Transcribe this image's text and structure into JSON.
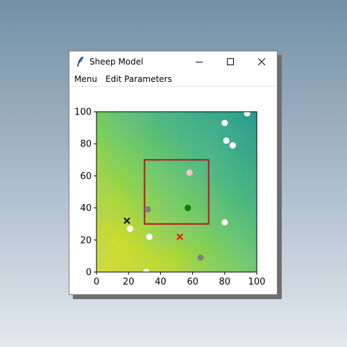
{
  "window": {
    "title": "Sheep Model",
    "icon": "feather-icon",
    "controls": [
      "minimize-icon",
      "maximize-icon",
      "close-icon"
    ]
  },
  "menubar": {
    "items": [
      "Menu",
      "Edit Parameters"
    ]
  },
  "chart_data": {
    "type": "scatter",
    "xlim": [
      0,
      100
    ],
    "ylim": [
      0,
      100
    ],
    "x_ticks": [
      "0",
      "20",
      "40",
      "60",
      "80",
      "100"
    ],
    "y_ticks": [
      "0",
      "20",
      "40",
      "60",
      "80",
      "100"
    ],
    "background": "heatmap (yellow lower-left to teal upper-right, viridis-like)",
    "sheep_points": [
      {
        "x": 80,
        "y": 93,
        "color": "#ffffff"
      },
      {
        "x": 94,
        "y": 99,
        "color": "#ffffff"
      },
      {
        "x": 81,
        "y": 82,
        "color": "#ffffff"
      },
      {
        "x": 85,
        "y": 79,
        "color": "#ffffff"
      },
      {
        "x": 80,
        "y": 31,
        "color": "#ffffff"
      },
      {
        "x": 21,
        "y": 27,
        "color": "#ffffff"
      },
      {
        "x": 33,
        "y": 22,
        "color": "#ffffff"
      },
      {
        "x": 31,
        "y": 0,
        "color": "#ffffff"
      },
      {
        "x": 58,
        "y": 62,
        "color": "#ffc0cb"
      },
      {
        "x": 57,
        "y": 40,
        "color": "#008000"
      },
      {
        "x": 32,
        "y": 39,
        "color": "#808080"
      },
      {
        "x": 65,
        "y": 9,
        "color": "#808080"
      }
    ],
    "markers": [
      {
        "x": 19,
        "y": 32,
        "color": "#000000",
        "shape": "x"
      },
      {
        "x": 52,
        "y": 22,
        "color": "#ff0000",
        "shape": "x"
      }
    ],
    "box": {
      "x0": 30,
      "y0": 30,
      "x1": 70,
      "y1": 70,
      "color": "#b22222"
    }
  }
}
